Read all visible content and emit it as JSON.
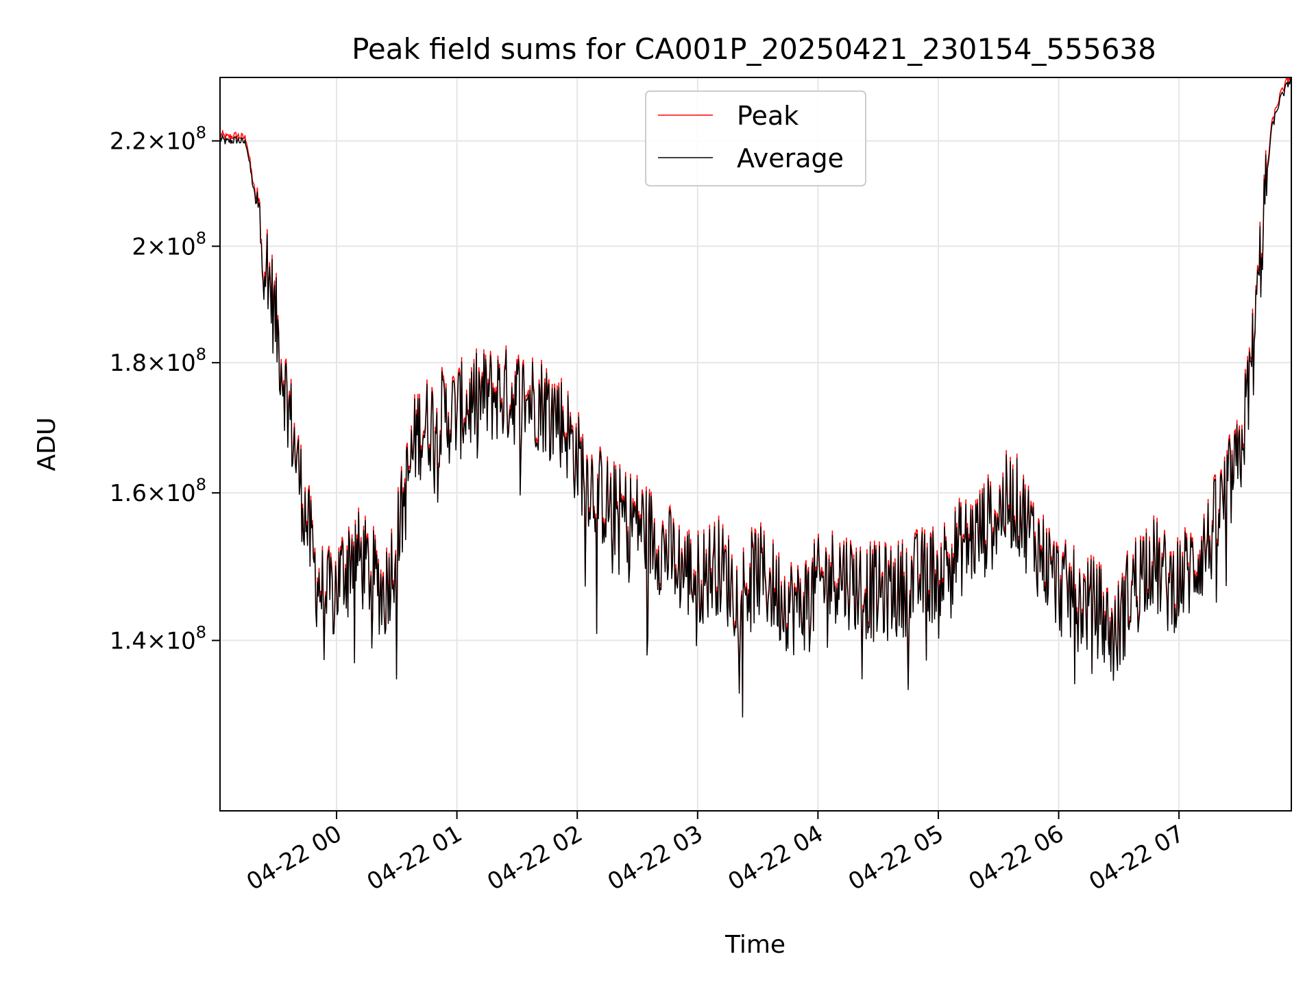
{
  "chart_data": {
    "type": "line",
    "title": "Peak field sums for CA001P_20250421_230154_555638",
    "xlabel": "Time",
    "ylabel": "ADU",
    "yscale": "log",
    "grid": true,
    "legend_position": "top-center",
    "xlim": [
      "2025-04-21 23:01:54",
      "2025-04-22 07:56:00"
    ],
    "ylim": [
      120000000,
      233000000
    ],
    "x_ticks": [
      {
        "time": "2025-04-22 00:00",
        "label": "04-22 00"
      },
      {
        "time": "2025-04-22 01:00",
        "label": "04-22 01"
      },
      {
        "time": "2025-04-22 02:00",
        "label": "04-22 02"
      },
      {
        "time": "2025-04-22 03:00",
        "label": "04-22 03"
      },
      {
        "time": "2025-04-22 04:00",
        "label": "04-22 04"
      },
      {
        "time": "2025-04-22 05:00",
        "label": "04-22 05"
      },
      {
        "time": "2025-04-22 06:00",
        "label": "04-22 06"
      },
      {
        "time": "2025-04-22 07:00",
        "label": "04-22 07"
      }
    ],
    "y_ticks": [
      {
        "value": 140000000,
        "mantissa": "1.4",
        "exponent": "8"
      },
      {
        "value": 160000000,
        "mantissa": "1.6",
        "exponent": "8"
      },
      {
        "value": 180000000,
        "mantissa": "1.8",
        "exponent": "8"
      },
      {
        "value": 200000000,
        "mantissa": "2",
        "exponent": "8"
      },
      {
        "value": 220000000,
        "mantissa": "2.2",
        "exponent": "8"
      }
    ],
    "tick_label_times": "×",
    "tick_label_base": "10",
    "series": [
      {
        "name": "Peak",
        "color": "#ff0000"
      },
      {
        "name": "Average",
        "color": "#000000"
      }
    ],
    "average_series": {
      "x": [
        "2025-04-21 23:02",
        "2025-04-21 23:05",
        "2025-04-21 23:10",
        "2025-04-21 23:15",
        "2025-04-21 23:18",
        "2025-04-21 23:22",
        "2025-04-21 23:26",
        "2025-04-21 23:30",
        "2025-04-21 23:35",
        "2025-04-21 23:40",
        "2025-04-21 23:45",
        "2025-04-21 23:50",
        "2025-04-21 23:55",
        "2025-04-22 00:00",
        "2025-04-22 00:08",
        "2025-04-22 00:16",
        "2025-04-22 00:24",
        "2025-04-22 00:30",
        "2025-04-22 00:35",
        "2025-04-22 00:40",
        "2025-04-22 00:45",
        "2025-04-22 00:50",
        "2025-04-22 01:00",
        "2025-04-22 01:10",
        "2025-04-22 01:20",
        "2025-04-22 01:30",
        "2025-04-22 01:40",
        "2025-04-22 01:50",
        "2025-04-22 01:55",
        "2025-04-22 02:00",
        "2025-04-22 02:10",
        "2025-04-22 02:20",
        "2025-04-22 02:30",
        "2025-04-22 02:40",
        "2025-04-22 02:50",
        "2025-04-22 03:00",
        "2025-04-22 03:10",
        "2025-04-22 03:20",
        "2025-04-22 03:30",
        "2025-04-22 03:40",
        "2025-04-22 03:50",
        "2025-04-22 04:00",
        "2025-04-22 04:10",
        "2025-04-22 04:20",
        "2025-04-22 04:30",
        "2025-04-22 04:40",
        "2025-04-22 04:50",
        "2025-04-22 05:00",
        "2025-04-22 05:10",
        "2025-04-22 05:20",
        "2025-04-22 05:30",
        "2025-04-22 05:35",
        "2025-04-22 05:40",
        "2025-04-22 05:50",
        "2025-04-22 06:00",
        "2025-04-22 06:10",
        "2025-04-22 06:20",
        "2025-04-22 06:28",
        "2025-04-22 06:35",
        "2025-04-22 06:45",
        "2025-04-22 06:55",
        "2025-04-22 07:05",
        "2025-04-22 07:15",
        "2025-04-22 07:20",
        "2025-04-22 07:25",
        "2025-04-22 07:30",
        "2025-04-22 07:34",
        "2025-04-22 07:38",
        "2025-04-22 07:42",
        "2025-04-22 07:46",
        "2025-04-22 07:50",
        "2025-04-22 07:56"
      ],
      "y": [
        220500000,
        219800000,
        220200000,
        219600000,
        212000000,
        203000000,
        195000000,
        186000000,
        175000000,
        165000000,
        156000000,
        148000000,
        145000000,
        147000000,
        152000000,
        149000000,
        146000000,
        153000000,
        161000000,
        169000000,
        170000000,
        171000000,
        172000000,
        174000000,
        175000000,
        174500000,
        174000000,
        172000000,
        169000000,
        165000000,
        160000000,
        157000000,
        156000000,
        153000000,
        150000000,
        148000000,
        150000000,
        146000000,
        149000000,
        146000000,
        144000000,
        147000000,
        149000000,
        147000000,
        146000000,
        146500000,
        148000000,
        149000000,
        152000000,
        154000000,
        157000000,
        159000000,
        158000000,
        152000000,
        147000000,
        145000000,
        144000000,
        140000000,
        146000000,
        151000000,
        147000000,
        149000000,
        153000000,
        157000000,
        161000000,
        164000000,
        174000000,
        185000000,
        205000000,
        222000000,
        228000000,
        233000000
      ]
    },
    "noise_note": ""
  }
}
